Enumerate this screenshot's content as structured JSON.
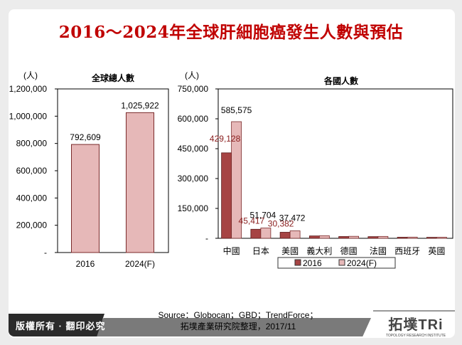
{
  "title": "2016～2024年全球肝細胞癌發生人數與預估",
  "colors": {
    "title": "#c00000",
    "series_2016": "#a64444",
    "series_2024": "#e6b8b8"
  },
  "chart_data": [
    {
      "type": "bar",
      "title": "全球總人數",
      "ylabel": "(人)",
      "categories": [
        "2016",
        "2024(F)"
      ],
      "values": [
        792609,
        1025922
      ],
      "data_labels": [
        "792,609",
        "1,025,922"
      ],
      "ylim": [
        0,
        1200000
      ],
      "yticks": [
        "-",
        "200,000",
        "400,000",
        "600,000",
        "800,000",
        "1,000,000",
        "1,200,000"
      ],
      "grid": false
    },
    {
      "type": "bar",
      "title": "各國人數",
      "ylabel": "(人)",
      "categories": [
        "中國",
        "日本",
        "美國",
        "義大利",
        "德國",
        "法國",
        "西班牙",
        "英國"
      ],
      "series": [
        {
          "name": "2016",
          "values": [
            429128,
            45417,
            30382,
            12000,
            9000,
            8500,
            5500,
            5000
          ],
          "data_labels": [
            "429,128",
            "45,417",
            "30,382",
            "",
            "",
            "",
            "",
            ""
          ]
        },
        {
          "name": "2024(F)",
          "values": [
            585575,
            51704,
            37472,
            13000,
            10000,
            9500,
            6000,
            5500
          ],
          "data_labels": [
            "585,575",
            "51,704",
            "37,472",
            "",
            "",
            "",
            "",
            ""
          ]
        }
      ],
      "ylim": [
        0,
        750000
      ],
      "yticks": [
        "-",
        "150,000",
        "300,000",
        "450,000",
        "600,000",
        "750,000"
      ],
      "legend": "bottom",
      "grid": false
    }
  ],
  "footer": {
    "copyright": "版權所有 · 翻印必究",
    "source_line1": "Source：Globocan；GBD；TrendForce；",
    "source_line2": "拓墣產業研究院整理，2017/11",
    "logo": "拓墣TRi",
    "logo_sub": "TOPOLOGY RESEARCH INSTITUTE"
  }
}
